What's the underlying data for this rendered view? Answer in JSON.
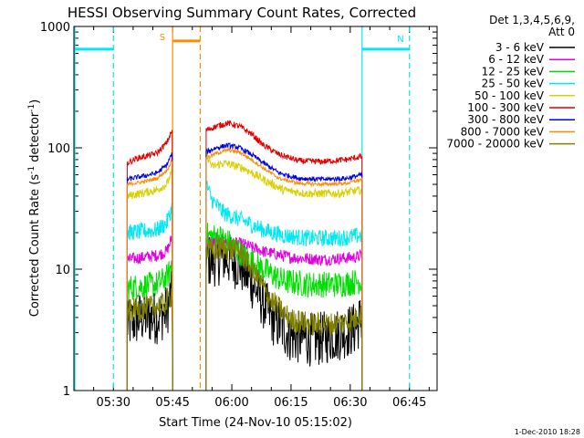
{
  "chart_data": {
    "type": "line",
    "title": "HESSI Observing Summary Count Rates, Corrected",
    "xlabel": "Start Time (24-Nov-10 05:15:02)",
    "ylabel": "Corrected Count Rate (s⁻¹ detector⁻¹)",
    "ylabel_parts": {
      "a": "Corrected Count Rate (s",
      "sup1": "-1",
      "b": " detector",
      "sup2": "-1",
      "c": ")"
    },
    "x_unit": "minutes after 05:15",
    "xlim": [
      5,
      97
    ],
    "ylim": [
      1,
      1000
    ],
    "yscale": "log",
    "x_ticks": [
      {
        "x": 15,
        "label": "05:30"
      },
      {
        "x": 30,
        "label": "05:45"
      },
      {
        "x": 45,
        "label": "06:00"
      },
      {
        "x": 60,
        "label": "06:15"
      },
      {
        "x": 75,
        "label": "06:30"
      },
      {
        "x": 90,
        "label": "06:45"
      }
    ],
    "y_ticks": [
      {
        "y": 1,
        "label": "1"
      },
      {
        "y": 10,
        "label": "10"
      },
      {
        "y": 100,
        "label": "100"
      },
      {
        "y": 1000,
        "label": "1000"
      }
    ],
    "legend": {
      "position": "right",
      "header": [
        "Det 1,3,4,5,6,9,",
        "Att 0"
      ],
      "entries": [
        {
          "label": "3 - 6 keV",
          "color": "#000000"
        },
        {
          "label": "6 - 12 keV",
          "color": "#e000e0"
        },
        {
          "label": "12 - 25 keV",
          "color": "#00e000"
        },
        {
          "label": "25 - 50 keV",
          "color": "#00e8f0"
        },
        {
          "label": "50 - 100 keV",
          "color": "#d8d000"
        },
        {
          "label": "100 - 300 keV",
          "color": "#e00000"
        },
        {
          "label": "300 - 800 keV",
          "color": "#0000e0"
        },
        {
          "label": "800 - 7000 keV",
          "color": "#ff8c00"
        },
        {
          "label": "7000 - 20000 keV",
          "color": "#808000"
        }
      ]
    },
    "segments": [
      {
        "x0": 18.5,
        "x1": 30.0
      },
      {
        "x0": 38.5,
        "x1": 78.0
      }
    ],
    "series": [
      {
        "name": "3 - 6 keV",
        "color": "#000000",
        "noise": 0.45,
        "dx": 0.12,
        "points": [
          [
            18.5,
            3.5
          ],
          [
            22,
            4.0
          ],
          [
            26,
            4.0
          ],
          [
            28.5,
            4.5
          ],
          [
            29.5,
            6.0
          ],
          [
            30,
            8.0
          ],
          [
            38.5,
            11.5
          ],
          [
            43,
            12.5
          ],
          [
            47,
            11.0
          ],
          [
            51,
            7.0
          ],
          [
            55,
            4.0
          ],
          [
            60,
            2.8
          ],
          [
            66,
            2.6
          ],
          [
            70,
            2.8
          ],
          [
            76,
            3.2
          ],
          [
            78,
            4.0
          ]
        ]
      },
      {
        "name": "6 - 12 keV",
        "color": "#e000e0",
        "noise": 0.1,
        "dx": 0.12,
        "points": [
          [
            18.5,
            12
          ],
          [
            26,
            13
          ],
          [
            28.5,
            14
          ],
          [
            29.5,
            17
          ],
          [
            30,
            19
          ],
          [
            38.5,
            17
          ],
          [
            43,
            17
          ],
          [
            48,
            16
          ],
          [
            53,
            14
          ],
          [
            60,
            12.5
          ],
          [
            68,
            12
          ],
          [
            76,
            12.5
          ],
          [
            78,
            13
          ]
        ]
      },
      {
        "name": "12 - 25 keV",
        "color": "#00e000",
        "noise": 0.22,
        "dx": 0.12,
        "points": [
          [
            18.5,
            7
          ],
          [
            26,
            7.5
          ],
          [
            28.5,
            8.5
          ],
          [
            29.5,
            10
          ],
          [
            30,
            11
          ],
          [
            38.5,
            19
          ],
          [
            43,
            18
          ],
          [
            48,
            13
          ],
          [
            53,
            10
          ],
          [
            58,
            8
          ],
          [
            64,
            7.5
          ],
          [
            72,
            7.5
          ],
          [
            78,
            8
          ]
        ]
      },
      {
        "name": "25 - 50 keV",
        "color": "#00e8f0",
        "noise": 0.14,
        "dx": 0.12,
        "points": [
          [
            18.5,
            20
          ],
          [
            26,
            21
          ],
          [
            28.5,
            24
          ],
          [
            29.5,
            30
          ],
          [
            30,
            33
          ],
          [
            38.5,
            50
          ],
          [
            40,
            37
          ],
          [
            43,
            29
          ],
          [
            48,
            25
          ],
          [
            53,
            21
          ],
          [
            58,
            19
          ],
          [
            64,
            18
          ],
          [
            72,
            18
          ],
          [
            78,
            19
          ]
        ]
      },
      {
        "name": "50 - 100 keV",
        "color": "#d8d000",
        "noise": 0.07,
        "dx": 0.12,
        "points": [
          [
            18.5,
            40
          ],
          [
            26,
            45
          ],
          [
            28.5,
            50
          ],
          [
            29.5,
            60
          ],
          [
            30,
            65
          ],
          [
            38.5,
            90
          ],
          [
            40,
            70
          ],
          [
            43,
            75
          ],
          [
            48,
            68
          ],
          [
            53,
            55
          ],
          [
            58,
            45
          ],
          [
            64,
            42
          ],
          [
            72,
            42
          ],
          [
            78,
            45
          ]
        ]
      },
      {
        "name": "100 - 300 keV",
        "color": "#e00000",
        "noise": 0.05,
        "dx": 0.12,
        "points": [
          [
            18.5,
            75
          ],
          [
            21,
            82
          ],
          [
            26,
            90
          ],
          [
            28.5,
            110
          ],
          [
            29.5,
            130
          ],
          [
            30,
            140
          ],
          [
            38.5,
            140
          ],
          [
            41,
            150
          ],
          [
            44,
            160
          ],
          [
            47,
            150
          ],
          [
            50,
            130
          ],
          [
            53,
            105
          ],
          [
            57,
            88
          ],
          [
            62,
            78
          ],
          [
            68,
            77
          ],
          [
            74,
            80
          ],
          [
            78,
            85
          ]
        ]
      },
      {
        "name": "300 - 800 keV",
        "color": "#0000e0",
        "noise": 0.04,
        "dx": 0.12,
        "points": [
          [
            18.5,
            55
          ],
          [
            22,
            58
          ],
          [
            26,
            62
          ],
          [
            28.5,
            72
          ],
          [
            29.5,
            85
          ],
          [
            30,
            90
          ],
          [
            38.5,
            92
          ],
          [
            41,
            100
          ],
          [
            44,
            105
          ],
          [
            47,
            100
          ],
          [
            50,
            88
          ],
          [
            53,
            75
          ],
          [
            57,
            62
          ],
          [
            62,
            56
          ],
          [
            68,
            55
          ],
          [
            74,
            56
          ],
          [
            78,
            60
          ]
        ]
      },
      {
        "name": "800 - 7000 keV",
        "color": "#ff8c00",
        "noise": 0.03,
        "dx": 0.12,
        "points": [
          [
            18.5,
            50
          ],
          [
            22,
            52
          ],
          [
            26,
            56
          ],
          [
            28.5,
            65
          ],
          [
            29.5,
            75
          ],
          [
            30,
            80
          ],
          [
            38.5,
            82
          ],
          [
            41,
            90
          ],
          [
            44,
            96
          ],
          [
            47,
            92
          ],
          [
            50,
            80
          ],
          [
            53,
            68
          ],
          [
            57,
            56
          ],
          [
            62,
            51
          ],
          [
            68,
            50
          ],
          [
            74,
            51
          ],
          [
            78,
            55
          ]
        ]
      },
      {
        "name": "7000 - 20000 keV",
        "color": "#808000",
        "noise": 0.2,
        "dx": 0.12,
        "points": [
          [
            18.5,
            4.5
          ],
          [
            24,
            4.8
          ],
          [
            28.5,
            5.2
          ],
          [
            29.5,
            6
          ],
          [
            30,
            7
          ],
          [
            38.5,
            14
          ],
          [
            43,
            15
          ],
          [
            47,
            14
          ],
          [
            51,
            9
          ],
          [
            55,
            5.5
          ],
          [
            60,
            3.8
          ],
          [
            66,
            3.5
          ],
          [
            70,
            3.5
          ],
          [
            76,
            3.8
          ],
          [
            78,
            4.5
          ]
        ]
      }
    ],
    "saa_intervals": [
      {
        "label": "",
        "color": "#00e8f0",
        "x0": 5,
        "x1": 15,
        "level": 650
      },
      {
        "label": "N",
        "color": "#00e8f0",
        "x0": 78,
        "x1": 90,
        "level": 650
      }
    ],
    "night_intervals": [
      {
        "label": "S",
        "color": "#ff8c00",
        "x0": 30,
        "x1": 37,
        "level": 760
      }
    ],
    "footer_date": "1-Dec-2010 18:28"
  }
}
